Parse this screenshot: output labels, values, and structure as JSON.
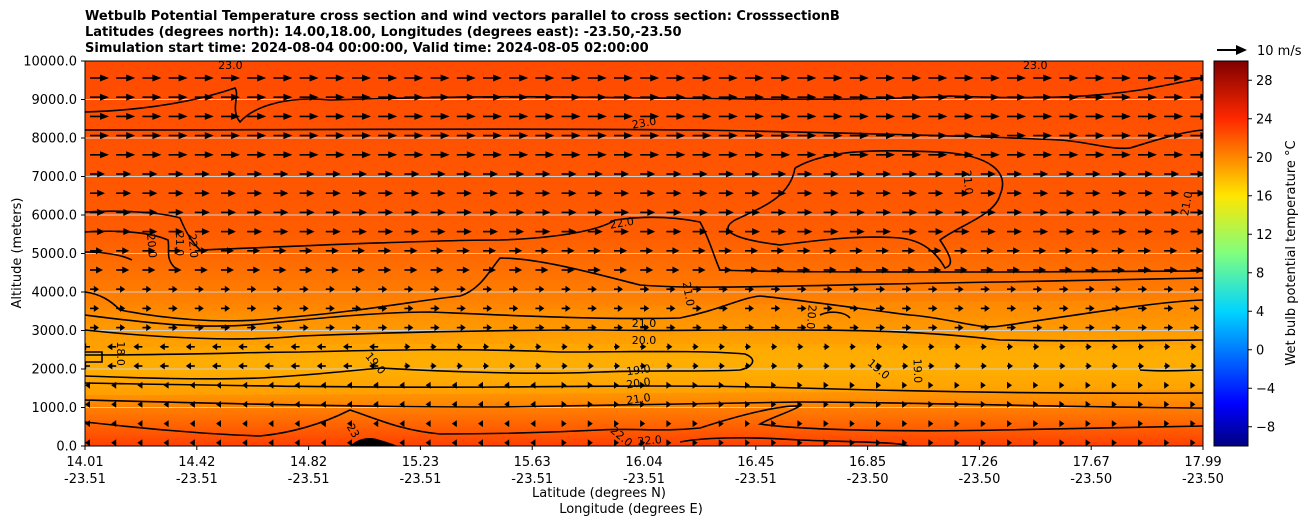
{
  "chart_data": {
    "type": "heatmap",
    "title_lines": [
      "Wetbulb Potential Temperature cross section and wind vectors parallel to cross section: CrosssectionB",
      "Latitudes (degrees north): 14.00,18.00, Longitudes (degrees east): -23.50,-23.50",
      "Simulation start time: 2024-08-04 00:00:00, Valid time: 2024-08-05 02:00:00"
    ],
    "ylabel": "Altitude (meters)",
    "xlabel_lat": "Latitude (degrees N)",
    "xlabel_lon": "Longitude (degrees E)",
    "ylim": [
      0,
      10000
    ],
    "y_ticks": [
      "0.0",
      "1000.0",
      "2000.0",
      "3000.0",
      "4000.0",
      "5000.0",
      "6000.0",
      "7000.0",
      "8000.0",
      "9000.0",
      "10000.0"
    ],
    "x_ticks": [
      {
        "lat": "14.01",
        "lon": "-23.51"
      },
      {
        "lat": "14.42",
        "lon": "-23.51"
      },
      {
        "lat": "14.82",
        "lon": "-23.51"
      },
      {
        "lat": "15.23",
        "lon": "-23.51"
      },
      {
        "lat": "15.63",
        "lon": "-23.51"
      },
      {
        "lat": "16.04",
        "lon": "-23.51"
      },
      {
        "lat": "16.45",
        "lon": "-23.51"
      },
      {
        "lat": "16.85",
        "lon": "-23.50"
      },
      {
        "lat": "17.26",
        "lon": "-23.50"
      },
      {
        "lat": "17.67",
        "lon": "-23.50"
      },
      {
        "lat": "17.99",
        "lon": "-23.50"
      }
    ],
    "colorbar": {
      "label": "Wet bulb potential temperature °C",
      "vmin": -10,
      "vmax": 30,
      "ticks": [
        "-8",
        "-4",
        "0",
        "4",
        "8",
        "12",
        "16",
        "20",
        "24",
        "28"
      ]
    },
    "wind_key_label": "10 m/s",
    "contour_labels": [
      {
        "text": "23.0",
        "lat_frac": 0.13,
        "alt": 9900,
        "angle": 0
      },
      {
        "text": "23.0",
        "lat_frac": 0.85,
        "alt": 9900,
        "angle": 0
      },
      {
        "text": "23.0",
        "lat_frac": 0.5,
        "alt": 8400,
        "angle": -10
      },
      {
        "text": "22.0",
        "lat_frac": 0.48,
        "alt": 5800,
        "angle": -10
      },
      {
        "text": "21.0",
        "lat_frac": 0.79,
        "alt": 6850,
        "angle": 85
      },
      {
        "text": "21.0",
        "lat_frac": 0.985,
        "alt": 6300,
        "angle": -80
      },
      {
        "text": "20.0",
        "lat_frac": 0.06,
        "alt": 5200,
        "angle": 85
      },
      {
        "text": "21.0",
        "lat_frac": 0.085,
        "alt": 5250,
        "angle": 90
      },
      {
        "text": "22.0",
        "lat_frac": 0.097,
        "alt": 5200,
        "angle": 85
      },
      {
        "text": "21.0",
        "lat_frac": 0.54,
        "alt": 3950,
        "angle": 80
      },
      {
        "text": "20.0",
        "lat_frac": 0.65,
        "alt": 3350,
        "angle": 95
      },
      {
        "text": "21.0",
        "lat_frac": 0.5,
        "alt": 3200,
        "angle": 0
      },
      {
        "text": "20.0",
        "lat_frac": 0.5,
        "alt": 2750,
        "angle": 0
      },
      {
        "text": "18.0",
        "lat_frac": 0.032,
        "alt": 2400,
        "angle": 90
      },
      {
        "text": "19.0",
        "lat_frac": 0.26,
        "alt": 2150,
        "angle": 50
      },
      {
        "text": "19.0",
        "lat_frac": 0.495,
        "alt": 1980,
        "angle": -8
      },
      {
        "text": "20.0",
        "lat_frac": 0.495,
        "alt": 1640,
        "angle": -8
      },
      {
        "text": "21.0",
        "lat_frac": 0.495,
        "alt": 1230,
        "angle": -8
      },
      {
        "text": "19.0",
        "lat_frac": 0.71,
        "alt": 2000,
        "angle": 40
      },
      {
        "text": "19.0",
        "lat_frac": 0.745,
        "alt": 1950,
        "angle": 88
      },
      {
        "text": "22.0",
        "lat_frac": 0.48,
        "alt": 250,
        "angle": 40
      },
      {
        "text": "22.0",
        "lat_frac": 0.505,
        "alt": 150,
        "angle": -5
      },
      {
        "text": "23",
        "lat_frac": 0.24,
        "alt": 400,
        "angle": 60
      }
    ]
  }
}
